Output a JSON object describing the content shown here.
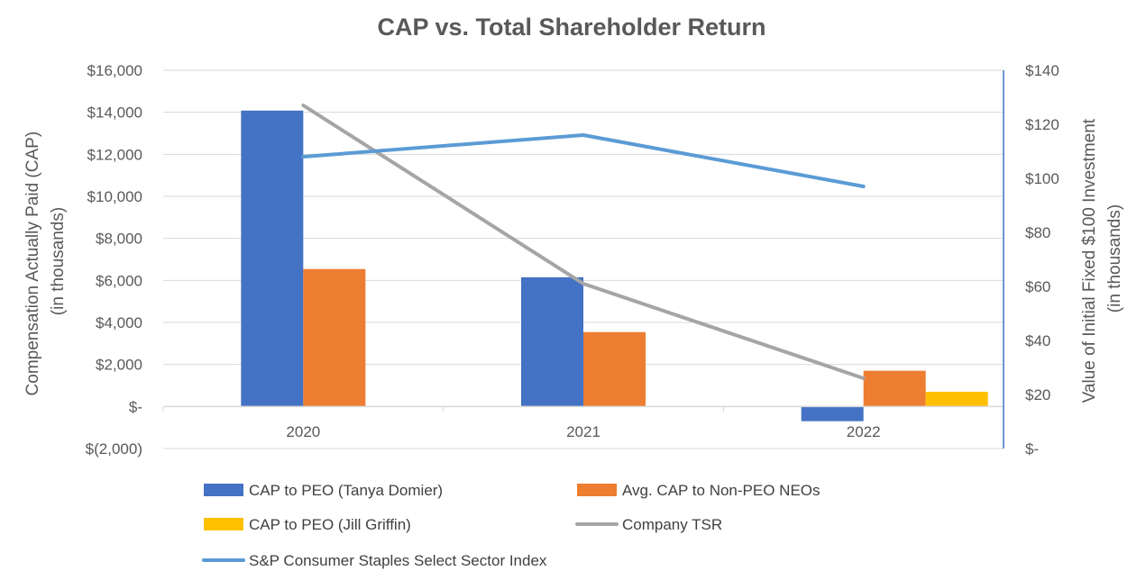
{
  "chart_data": {
    "type": "bar",
    "title": "CAP vs. Total Shareholder Return",
    "categories": [
      "2020",
      "2021",
      "2022"
    ],
    "ylabel_left": [
      "Compensation Actually Paid (CAP)",
      "(in thousands)"
    ],
    "ylabel_right": [
      "Value of Initial Fixed $100 Investment",
      "(in thousands)"
    ],
    "ylim_left": [
      -2000,
      16000
    ],
    "ylim_right": [
      0,
      140
    ],
    "yticks_left": [
      {
        "value": -2000,
        "label": "$(2,000)"
      },
      {
        "value": 0,
        "label": "$-"
      },
      {
        "value": 2000,
        "label": "$2,000"
      },
      {
        "value": 4000,
        "label": "$4,000"
      },
      {
        "value": 6000,
        "label": "$6,000"
      },
      {
        "value": 8000,
        "label": "$8,000"
      },
      {
        "value": 10000,
        "label": "$10,000"
      },
      {
        "value": 12000,
        "label": "$12,000"
      },
      {
        "value": 14000,
        "label": "$14,000"
      },
      {
        "value": 16000,
        "label": "$16,000"
      }
    ],
    "yticks_right": [
      {
        "value": 0,
        "label": "$-"
      },
      {
        "value": 20,
        "label": "$20"
      },
      {
        "value": 40,
        "label": "$40"
      },
      {
        "value": 60,
        "label": "$60"
      },
      {
        "value": 80,
        "label": "$80"
      },
      {
        "value": 100,
        "label": "$100"
      },
      {
        "value": 120,
        "label": "$120"
      },
      {
        "value": 140,
        "label": "$140"
      }
    ],
    "grid": true,
    "bar_series": [
      {
        "name": "CAP to PEO (Tanya Domier)",
        "color": "#4472C4",
        "values": [
          14080,
          6150,
          -700
        ]
      },
      {
        "name": "Avg. CAP to Non-PEO NEOs",
        "color": "#ED7D31",
        "values": [
          6540,
          3540,
          1700
        ]
      },
      {
        "name": "CAP to PEO (Jill Griffin)",
        "color": "#FFC000",
        "values": [
          null,
          null,
          700
        ]
      }
    ],
    "line_series": [
      {
        "name": "Company TSR",
        "color": "#A5A5A5",
        "axis": "right",
        "values": [
          127,
          61,
          26
        ]
      },
      {
        "name": "S&P Consumer Staples Select Sector Index",
        "color": "#5B9BD5",
        "axis": "right",
        "values": [
          108,
          116,
          97
        ]
      }
    ],
    "legend": [
      {
        "name": "CAP to PEO (Tanya Domier)",
        "color": "#4472C4",
        "kind": "bar"
      },
      {
        "name": "Avg. CAP to Non-PEO NEOs",
        "color": "#ED7D31",
        "kind": "bar"
      },
      {
        "name": "CAP to PEO (Jill Griffin)",
        "color": "#FFC000",
        "kind": "bar"
      },
      {
        "name": "Company TSR",
        "color": "#A5A5A5",
        "kind": "line"
      },
      {
        "name": "S&P Consumer Staples Select Sector Index",
        "color": "#5B9BD5",
        "kind": "line"
      }
    ],
    "legend_position": "bottom"
  }
}
